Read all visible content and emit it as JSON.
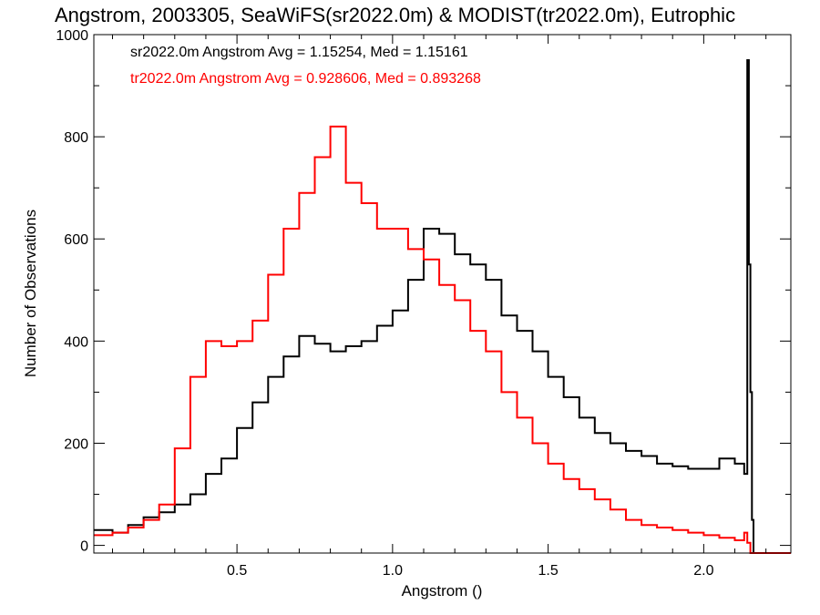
{
  "chart_data": {
    "type": "line",
    "title": "Angstrom, 2003305, SeaWiFS(sr2022.0m) & MODIST(tr2022.0m), Eutrophic",
    "xlabel": "Angstrom ()",
    "ylabel": "Number of Observations",
    "xlim": [
      0.04,
      2.28
    ],
    "ylim": [
      -15,
      1000
    ],
    "x_ticks": [
      0.5,
      1.0,
      1.5,
      2.0
    ],
    "x_tick_labels": [
      "0.5",
      "1.0",
      "1.5",
      "2.0"
    ],
    "y_ticks": [
      0,
      200,
      400,
      600,
      800,
      1000
    ],
    "y_tick_labels": [
      "0",
      "200",
      "400",
      "600",
      "800",
      "1000"
    ],
    "grid": false,
    "legend_position": "top-left",
    "annotations": [
      {
        "text": "sr2022.0m Angstrom Avg = 1.15254, Med = 1.15161",
        "color": "#000000"
      },
      {
        "text": "tr2022.0m Angstrom Avg = 0.928606, Med = 0.893268",
        "color": "#ff0000"
      }
    ],
    "series": [
      {
        "color": "#000000",
        "x": [
          0.04,
          0.1,
          0.15,
          0.2,
          0.25,
          0.3,
          0.35,
          0.4,
          0.45,
          0.5,
          0.55,
          0.6,
          0.65,
          0.7,
          0.75,
          0.8,
          0.85,
          0.9,
          0.95,
          1.0,
          1.05,
          1.1,
          1.15,
          1.2,
          1.25,
          1.3,
          1.35,
          1.4,
          1.45,
          1.5,
          1.55,
          1.6,
          1.65,
          1.7,
          1.75,
          1.8,
          1.85,
          1.9,
          1.95,
          2.0,
          2.05,
          2.1,
          2.13,
          2.14,
          2.145,
          2.15,
          2.155,
          2.16,
          2.17,
          2.2,
          2.28
        ],
        "y": [
          30,
          25,
          40,
          55,
          65,
          80,
          100,
          140,
          170,
          230,
          280,
          330,
          370,
          410,
          395,
          380,
          390,
          400,
          430,
          460,
          520,
          620,
          610,
          570,
          550,
          520,
          450,
          420,
          380,
          330,
          290,
          250,
          220,
          200,
          185,
          175,
          160,
          155,
          150,
          150,
          170,
          160,
          140,
          950,
          550,
          300,
          50,
          -15,
          -15,
          -15,
          -15
        ]
      },
      {
        "color": "#ff0000",
        "x": [
          0.04,
          0.1,
          0.15,
          0.2,
          0.25,
          0.3,
          0.35,
          0.4,
          0.45,
          0.5,
          0.55,
          0.6,
          0.65,
          0.7,
          0.75,
          0.8,
          0.85,
          0.9,
          0.95,
          1.0,
          1.05,
          1.1,
          1.15,
          1.2,
          1.25,
          1.3,
          1.35,
          1.4,
          1.45,
          1.5,
          1.55,
          1.6,
          1.65,
          1.7,
          1.75,
          1.8,
          1.85,
          1.9,
          1.95,
          2.0,
          2.05,
          2.1,
          2.13,
          2.14,
          2.15,
          2.2,
          2.28
        ],
        "y": [
          20,
          25,
          35,
          50,
          80,
          190,
          330,
          400,
          390,
          400,
          440,
          530,
          620,
          690,
          760,
          820,
          710,
          670,
          620,
          620,
          580,
          560,
          510,
          480,
          420,
          380,
          300,
          250,
          200,
          160,
          130,
          110,
          90,
          70,
          50,
          40,
          35,
          30,
          25,
          20,
          15,
          10,
          25,
          5,
          -15,
          -15,
          -15
        ]
      }
    ]
  }
}
